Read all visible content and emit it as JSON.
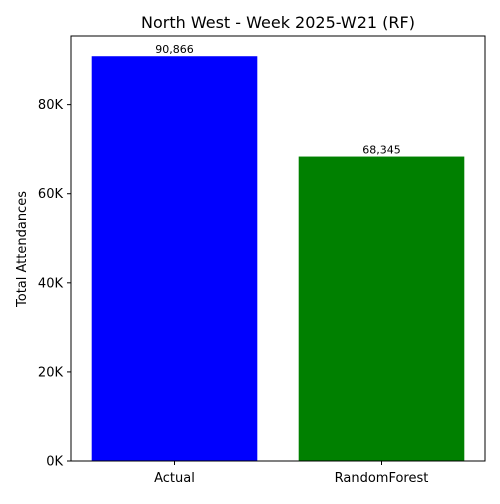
{
  "chart_data": {
    "type": "bar",
    "title": "North West - Week 2025-W21 (RF)",
    "xlabel": "",
    "ylabel": "Total Attendances",
    "categories": [
      "Actual",
      "RandomForest"
    ],
    "values": [
      90866,
      68345
    ],
    "value_labels": [
      "90,866",
      "68,345"
    ],
    "bar_colors": [
      "#0000ff",
      "#008000"
    ],
    "ylim": [
      0,
      95407
    ],
    "yticks": [
      0,
      20000,
      40000,
      60000,
      80000
    ],
    "ytick_labels": [
      "0K",
      "20K",
      "40K",
      "60K",
      "80K"
    ],
    "grid": false,
    "legend": "none"
  }
}
